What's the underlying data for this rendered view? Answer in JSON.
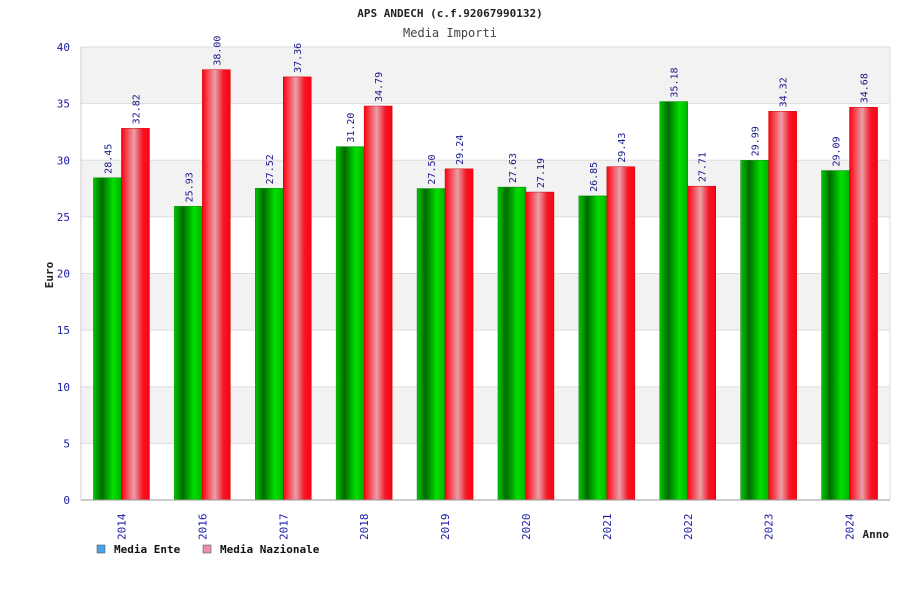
{
  "colors": {
    "ente": "#00aa00",
    "nazionale": "#ee0011",
    "legend_ente": "#4da3e8",
    "legend_nazionale": "#e58fb5",
    "band": "#f2f2f2",
    "tick_text": "#1a1aa6"
  },
  "chart_data": {
    "type": "bar",
    "title": "APS ANDECH (c.f.92067990132)",
    "subtitle": "Media Importi",
    "xlabel": "Anno",
    "ylabel": "Euro",
    "ylim": [
      0,
      40
    ],
    "yticks": [
      0,
      5,
      10,
      15,
      20,
      25,
      30,
      35,
      40
    ],
    "grid": true,
    "legend_position": "bottom-left",
    "categories": [
      "2014",
      "2016",
      "2017",
      "2018",
      "2019",
      "2020",
      "2021",
      "2022",
      "2023",
      "2024"
    ],
    "series": [
      {
        "name": "Media Ente",
        "values": [
          28.45,
          25.93,
          27.52,
          31.2,
          27.5,
          27.63,
          26.85,
          35.18,
          29.99,
          29.09
        ],
        "labels": [
          "28.45",
          "25.93",
          "27.52",
          "31.20",
          "27.50",
          "27.63",
          "26.85",
          "35.18",
          "29.99",
          "29.09"
        ]
      },
      {
        "name": "Media Nazionale",
        "values": [
          32.82,
          38.0,
          37.36,
          34.79,
          29.24,
          27.19,
          29.43,
          27.71,
          34.32,
          34.68
        ],
        "labels": [
          "32.82",
          "38.00",
          "37.36",
          "34.79",
          "29.24",
          "27.19",
          "29.43",
          "27.71",
          "34.32",
          "34.68"
        ]
      }
    ]
  }
}
